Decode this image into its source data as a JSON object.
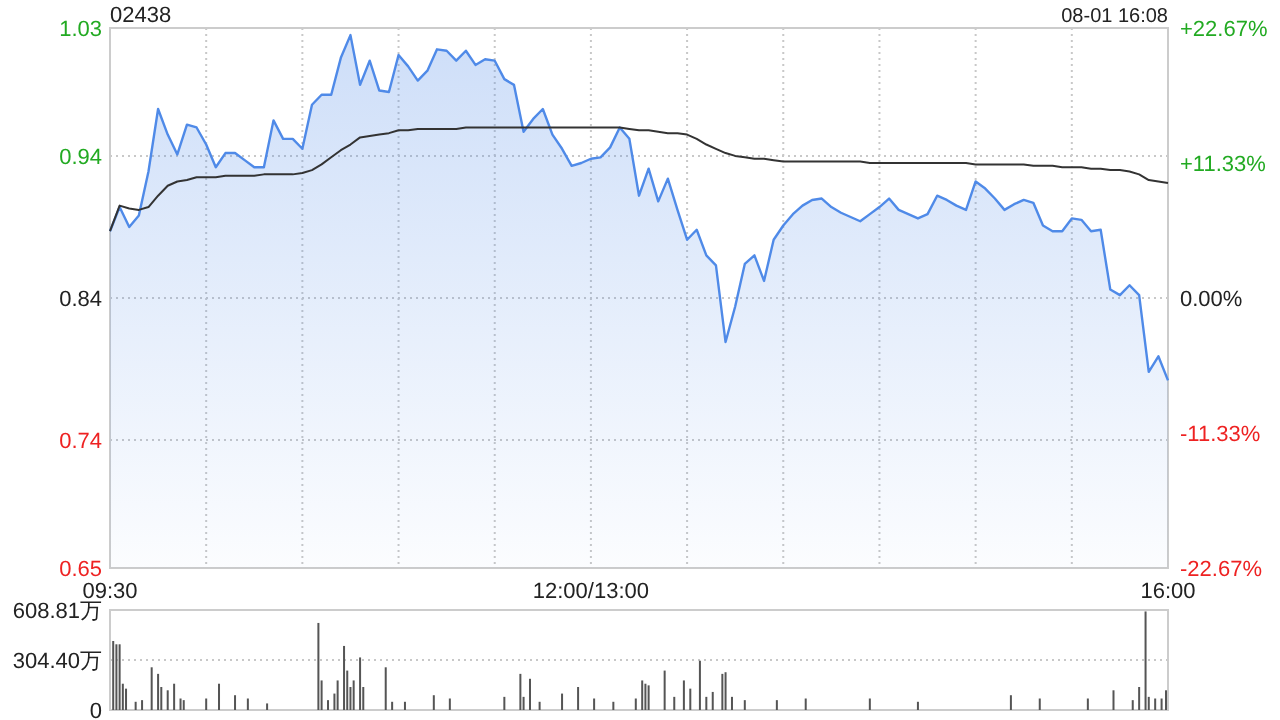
{
  "chart_data": [
    {
      "type": "area",
      "title": "02438",
      "annotations": [
        "08-01 16:08"
      ],
      "grid": true,
      "categories": [
        "09:30",
        null,
        null,
        null,
        null,
        null,
        null,
        null,
        null,
        null,
        null,
        null,
        null,
        null,
        null,
        null,
        null,
        null,
        null,
        null,
        null,
        null,
        null,
        null,
        null,
        null,
        null,
        null,
        null,
        null,
        null,
        null,
        null,
        null,
        null,
        null,
        null,
        null,
        null,
        null,
        null,
        null,
        null,
        null,
        null,
        null,
        null,
        null,
        null,
        null,
        "12:00/13:00",
        null,
        null,
        null,
        null,
        null,
        null,
        null,
        null,
        null,
        null,
        null,
        null,
        null,
        null,
        null,
        null,
        null,
        null,
        null,
        null,
        null,
        null,
        null,
        null,
        null,
        null,
        null,
        null,
        null,
        null,
        null,
        null,
        null,
        null,
        null,
        null,
        null,
        null,
        null,
        null,
        null,
        null,
        null,
        null,
        null,
        null,
        null,
        null,
        null,
        null,
        null,
        null,
        null,
        null,
        null,
        null,
        null,
        null,
        null,
        "16:00"
      ],
      "ylim": [
        0.65,
        1.03
      ],
      "yticks": [
        0.65,
        0.74,
        0.84,
        0.94,
        1.03
      ],
      "y2lim": [
        -22.67,
        22.67
      ],
      "y2ticks": [
        {
          "value": -22.67,
          "label": "-22.67%"
        },
        {
          "value": -11.33,
          "label": "-11.33%"
        },
        {
          "value": 0,
          "label": "0.00%"
        },
        {
          "value": 11.33,
          "label": "+11.33%"
        },
        {
          "value": 22.67,
          "label": "+22.67%"
        }
      ],
      "series": [
        {
          "color": "#4f8ae8",
          "values": [
            0.887,
            0.904,
            0.89,
            0.898,
            0.929,
            0.973,
            0.955,
            0.941,
            0.962,
            0.96,
            0.948,
            0.932,
            0.942,
            0.942,
            0.937,
            0.932,
            0.932,
            0.965,
            0.952,
            0.952,
            0.945,
            0.976,
            0.983,
            0.983,
            1.009,
            1.025,
            0.99,
            1.007,
            0.986,
            0.985,
            1.011,
            1.003,
            0.993,
            1.0,
            1.015,
            1.014,
            1.007,
            1.014,
            1.004,
            1.008,
            1.007,
            0.994,
            0.99,
            0.957,
            0.966,
            0.973,
            0.955,
            0.945,
            0.933,
            0.935,
            0.938,
            0.939,
            0.946,
            0.96,
            0.952,
            0.912,
            0.931,
            0.908,
            0.924,
            0.902,
            0.881,
            0.888,
            0.87,
            0.863,
            0.809,
            0.834,
            0.864,
            0.87,
            0.852,
            0.881,
            0.891,
            0.899,
            0.905,
            0.909,
            0.91,
            0.904,
            0.9,
            0.897,
            0.894,
            0.899,
            0.904,
            0.91,
            0.902,
            0.899,
            0.896,
            0.899,
            0.912,
            0.909,
            0.905,
            0.902,
            0.922,
            0.917,
            0.91,
            0.902,
            0.906,
            0.909,
            0.907,
            0.891,
            0.887,
            0.887,
            0.896,
            0.895,
            0.887,
            0.888,
            0.846,
            0.842,
            0.849,
            0.842,
            0.788,
            0.799,
            0.782
          ]
        },
        {
          "type": "line",
          "color": "#333333",
          "values": [
            0.887,
            0.905,
            0.903,
            0.902,
            0.904,
            0.912,
            0.919,
            0.922,
            0.923,
            0.925,
            0.925,
            0.925,
            0.926,
            0.926,
            0.926,
            0.926,
            0.927,
            0.927,
            0.927,
            0.927,
            0.928,
            0.93,
            0.934,
            0.939,
            0.944,
            0.948,
            0.953,
            0.954,
            0.955,
            0.956,
            0.958,
            0.958,
            0.959,
            0.959,
            0.959,
            0.959,
            0.959,
            0.96,
            0.96,
            0.96,
            0.96,
            0.96,
            0.96,
            0.96,
            0.96,
            0.96,
            0.96,
            0.96,
            0.96,
            0.96,
            0.96,
            0.96,
            0.96,
            0.96,
            0.959,
            0.958,
            0.958,
            0.957,
            0.956,
            0.956,
            0.955,
            0.952,
            0.948,
            0.945,
            0.942,
            0.94,
            0.939,
            0.938,
            0.938,
            0.937,
            0.936,
            0.936,
            0.936,
            0.936,
            0.936,
            0.936,
            0.936,
            0.936,
            0.936,
            0.935,
            0.935,
            0.935,
            0.935,
            0.935,
            0.935,
            0.935,
            0.935,
            0.935,
            0.935,
            0.935,
            0.934,
            0.934,
            0.934,
            0.934,
            0.934,
            0.934,
            0.933,
            0.933,
            0.933,
            0.932,
            0.932,
            0.932,
            0.931,
            0.931,
            0.93,
            0.93,
            0.929,
            0.927,
            0.923,
            0.922,
            0.921
          ]
        }
      ]
    },
    {
      "type": "bar",
      "grid": "y",
      "tick_labels": "y",
      "ylim": [
        0,
        608.81
      ],
      "yticks": [
        0,
        {
          "value": 304.4,
          "label": "304.40万"
        },
        {
          "value": 608.81,
          "label": "608.81万"
        }
      ],
      "categories": [
        null,
        null,
        null,
        null,
        null,
        null,
        null,
        null,
        null,
        null,
        null,
        null,
        null,
        null,
        null,
        null,
        null,
        null,
        null,
        null,
        null,
        null,
        null,
        null,
        null,
        null,
        null,
        null,
        null,
        null,
        null,
        null,
        null,
        null,
        null,
        null,
        null,
        null,
        null,
        null,
        null,
        null,
        null,
        null,
        null,
        null,
        null,
        null,
        null,
        null,
        null,
        null,
        null,
        null,
        null,
        null,
        null,
        null,
        null,
        null,
        null,
        null,
        null,
        null,
        null,
        null,
        null,
        null,
        null,
        null,
        null,
        null,
        null,
        null,
        null,
        null,
        null,
        null,
        null,
        null,
        null,
        null,
        null,
        null,
        null,
        null,
        null,
        null,
        null,
        null,
        null,
        null,
        null,
        null,
        null,
        null,
        null,
        null,
        null,
        null,
        null,
        null,
        null,
        null,
        null,
        null,
        null,
        null,
        null,
        null,
        null,
        null,
        null,
        null,
        null,
        null,
        null,
        null,
        null,
        null,
        null,
        null,
        null,
        null,
        null,
        null,
        null,
        null,
        null,
        null,
        null,
        null,
        null,
        null,
        null,
        null,
        null,
        null,
        null,
        null,
        null,
        null,
        null,
        null,
        null,
        null,
        null,
        null,
        null,
        null,
        null,
        null,
        null,
        null,
        null,
        null,
        null,
        null,
        null,
        null,
        null,
        null,
        null,
        null,
        null,
        null,
        null,
        null,
        null,
        null,
        null,
        null,
        null,
        null,
        null,
        null,
        null,
        null,
        null,
        null,
        null,
        null,
        null,
        null,
        null,
        null,
        null,
        null,
        null,
        null,
        null,
        null,
        null,
        null,
        null,
        null,
        null,
        null,
        null,
        null,
        null,
        null,
        null,
        null,
        null,
        null,
        null,
        null,
        null,
        null,
        null,
        null,
        null,
        null,
        null,
        null,
        null,
        null,
        null,
        null,
        null,
        null,
        null,
        null,
        null,
        null,
        null,
        null,
        null,
        null,
        null,
        null,
        null,
        null,
        null,
        null,
        null,
        null,
        null,
        null,
        null,
        null,
        null,
        null,
        null,
        null,
        null,
        null,
        null,
        null,
        null,
        null,
        null,
        null,
        null,
        null,
        null,
        null,
        null,
        null,
        null,
        null,
        null,
        null,
        null,
        null,
        null,
        null,
        null,
        null,
        null,
        null,
        null,
        null,
        null,
        null,
        null,
        null,
        null,
        null,
        null,
        null,
        null,
        null,
        null,
        null,
        null,
        null,
        null,
        null,
        null,
        null,
        null,
        null,
        null,
        null,
        null,
        null,
        null,
        null,
        null,
        null,
        null,
        null,
        null,
        null,
        null,
        null,
        null,
        null,
        null,
        null,
        null,
        null,
        null,
        null,
        null,
        null,
        null,
        null,
        null,
        null,
        null,
        null,
        null,
        null,
        null,
        null,
        null,
        null,
        null
      ],
      "series": [
        {
          "color": "#555555",
          "values": [
            null,
            420,
            400,
            400,
            160,
            130,
            null,
            null,
            50,
            null,
            60,
            null,
            null,
            260,
            null,
            220,
            140,
            null,
            120,
            null,
            160,
            null,
            70,
            60,
            null,
            null,
            null,
            null,
            null,
            null,
            70,
            null,
            null,
            null,
            160,
            null,
            null,
            null,
            null,
            90,
            null,
            null,
            null,
            70,
            null,
            null,
            null,
            null,
            null,
            40,
            null,
            null,
            null,
            null,
            null,
            null,
            null,
            null,
            null,
            null,
            null,
            null,
            null,
            null,
            null,
            530,
            180,
            null,
            60,
            null,
            100,
            180,
            null,
            390,
            240,
            140,
            180,
            null,
            320,
            140,
            null,
            null,
            null,
            null,
            null,
            null,
            260,
            null,
            50,
            null,
            null,
            null,
            50,
            null,
            null,
            null,
            null,
            null,
            null,
            null,
            null,
            90,
            null,
            null,
            null,
            null,
            70,
            null,
            null,
            null,
            null,
            null,
            null,
            null,
            null,
            null,
            null,
            null,
            null,
            null,
            null,
            null,
            null,
            80,
            null,
            null,
            null,
            null,
            220,
            80,
            null,
            190,
            null,
            null,
            50,
            null,
            null,
            null,
            null,
            null,
            null,
            100,
            null,
            null,
            null,
            null,
            140,
            null,
            null,
            null,
            null,
            70,
            null,
            null,
            null,
            null,
            null,
            50,
            null,
            null,
            null,
            null,
            null,
            null,
            70,
            null,
            180,
            160,
            150,
            null,
            null,
            null,
            null,
            240,
            null,
            null,
            80,
            null,
            null,
            180,
            null,
            130,
            null,
            null,
            300,
            null,
            80,
            null,
            110,
            null,
            null,
            220,
            230,
            null,
            80,
            null,
            null,
            null,
            60,
            null,
            null,
            null,
            null,
            null,
            null,
            null,
            null,
            null,
            60,
            null,
            null,
            null,
            null,
            null,
            null,
            null,
            null,
            70,
            null,
            null,
            null,
            null,
            null,
            null,
            null,
            null,
            null,
            null,
            null,
            null,
            null,
            null,
            null,
            null,
            null,
            null,
            null,
            70,
            null,
            null,
            null,
            null,
            null,
            null,
            null,
            null,
            null,
            null,
            null,
            null,
            null,
            null,
            50,
            null,
            null,
            null,
            null,
            null,
            null,
            null,
            null,
            null,
            null,
            null,
            null,
            null,
            null,
            null,
            null,
            null,
            null,
            null,
            null,
            null,
            null,
            null,
            null,
            null,
            null,
            null,
            null,
            90,
            null,
            null,
            null,
            null,
            null,
            null,
            null,
            null,
            70,
            null,
            null,
            null,
            null,
            null,
            null,
            null,
            null,
            null,
            null,
            null,
            null,
            null,
            null,
            70,
            null,
            null,
            null,
            null,
            null,
            null,
            null,
            120,
            null,
            null,
            null,
            null,
            null,
            60,
            null,
            140,
            null,
            600,
            80,
            null,
            70,
            null,
            70,
            null,
            120
          ]
        }
      ]
    }
  ]
}
